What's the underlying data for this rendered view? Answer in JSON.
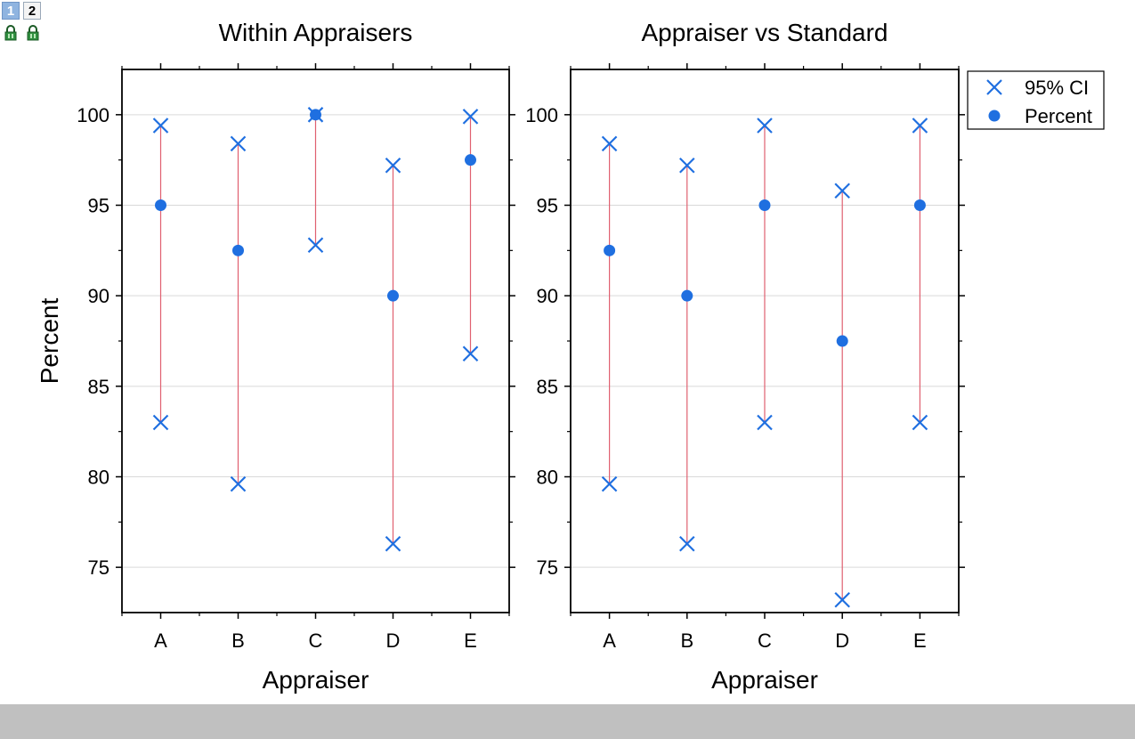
{
  "pages": [
    "1",
    "2"
  ],
  "colors": {
    "marker": "#1f6fe0",
    "ci_line": "#e06070",
    "axis": "#000000",
    "grid": "#d9d9d9",
    "statusbar": "#c0c0c0"
  },
  "chart_data": [
    {
      "type": "scatter",
      "title": "Within Appraisers",
      "xlabel": "Appraiser",
      "ylabel": "Percent",
      "categories": [
        "A",
        "B",
        "C",
        "D",
        "E"
      ],
      "ylim": [
        72.5,
        102.5
      ],
      "yticks": [
        "75",
        "80",
        "85",
        "90",
        "95",
        "100"
      ],
      "grid": true,
      "series": [
        {
          "name": "95% CI",
          "marker": "x",
          "upper": [
            99.4,
            98.4,
            100,
            97.2,
            99.9
          ],
          "lower": [
            83.0,
            79.6,
            92.8,
            76.3,
            86.8
          ]
        },
        {
          "name": "Percent",
          "marker": "circle",
          "values": [
            95.0,
            92.5,
            100,
            90.0,
            97.5
          ]
        }
      ]
    },
    {
      "type": "scatter",
      "title": "Appraiser vs Standard",
      "xlabel": "Appraiser",
      "ylabel": "",
      "categories": [
        "A",
        "B",
        "C",
        "D",
        "E"
      ],
      "ylim": [
        72.5,
        102.5
      ],
      "yticks": [
        "75",
        "80",
        "85",
        "90",
        "95",
        "100"
      ],
      "grid": true,
      "series": [
        {
          "name": "95% CI",
          "marker": "x",
          "upper": [
            98.4,
            97.2,
            99.4,
            95.8,
            99.4
          ],
          "lower": [
            79.6,
            76.3,
            83.0,
            73.2,
            83.0
          ]
        },
        {
          "name": "Percent",
          "marker": "circle",
          "values": [
            92.5,
            90.0,
            95.0,
            87.5,
            95.0
          ]
        }
      ]
    }
  ],
  "legend": {
    "position": "right",
    "items": [
      "95% CI",
      "Percent"
    ]
  }
}
